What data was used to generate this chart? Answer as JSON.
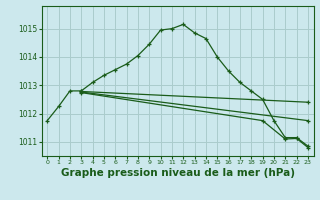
{
  "background_color": "#cce8ed",
  "grid_color": "#aacccc",
  "line_color": "#1a5c1a",
  "title": "Graphe pression niveau de la mer (hPa)",
  "title_fontsize": 7.5,
  "xlim": [
    -0.5,
    23.5
  ],
  "ylim": [
    1010.5,
    1015.8
  ],
  "yticks": [
    1011,
    1012,
    1013,
    1014,
    1015
  ],
  "xticks": [
    0,
    1,
    2,
    3,
    4,
    5,
    6,
    7,
    8,
    9,
    10,
    11,
    12,
    13,
    14,
    15,
    16,
    17,
    18,
    19,
    20,
    21,
    22,
    23
  ],
  "series1_x": [
    0,
    1,
    2,
    3,
    4,
    5,
    6,
    7,
    8,
    9,
    10,
    11,
    12,
    13,
    14,
    15,
    16,
    17,
    18,
    19,
    20,
    21,
    22,
    23
  ],
  "series1_y": [
    1011.75,
    1012.25,
    1012.8,
    1012.8,
    1013.1,
    1013.35,
    1013.55,
    1013.75,
    1014.05,
    1014.45,
    1014.95,
    1015.0,
    1015.15,
    1014.85,
    1014.65,
    1014.0,
    1013.5,
    1013.1,
    1012.8,
    1012.5,
    1011.75,
    1011.15,
    1011.15,
    1010.85
  ],
  "series2_x": [
    3,
    23
  ],
  "series2_y": [
    1012.78,
    1012.4
  ],
  "series3_x": [
    3,
    23
  ],
  "series3_y": [
    1012.76,
    1011.75
  ],
  "series4_x": [
    3,
    19,
    21,
    22,
    23
  ],
  "series4_y": [
    1012.74,
    1011.75,
    1011.1,
    1011.12,
    1010.8
  ]
}
